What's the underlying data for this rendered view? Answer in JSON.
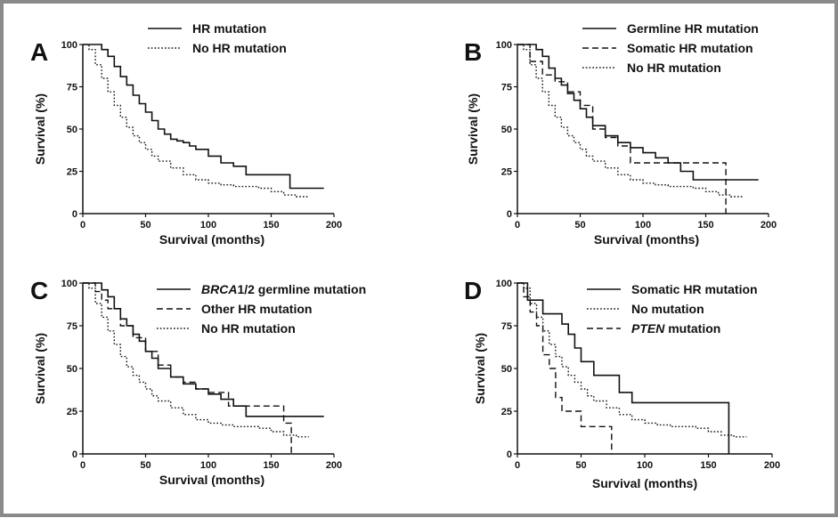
{
  "chart_data": [
    {
      "panel": "A",
      "type": "line",
      "xlabel": "Survival (months)",
      "ylabel": "Survival (%)",
      "xlim": [
        0,
        200
      ],
      "ylim": [
        0,
        100
      ],
      "xticks": [
        "0",
        "50",
        "100",
        "150",
        "200"
      ],
      "yticks": [
        "0",
        "25",
        "50",
        "75",
        "100"
      ],
      "legend_position": "top-right",
      "series": [
        {
          "name": "HR mutation",
          "style": "solid",
          "x": [
            0,
            8,
            15,
            20,
            25,
            30,
            35,
            40,
            45,
            50,
            55,
            60,
            65,
            70,
            75,
            80,
            85,
            90,
            100,
            110,
            120,
            130,
            140,
            150,
            160,
            165,
            170,
            180,
            192
          ],
          "y": [
            100,
            100,
            97,
            93,
            87,
            81,
            76,
            70,
            65,
            60,
            55,
            50,
            47,
            44,
            43,
            42,
            40,
            38,
            34,
            30,
            28,
            23,
            23,
            23,
            23,
            15,
            15,
            15,
            15
          ]
        },
        {
          "name": "No HR mutation",
          "style": "dotted",
          "x": [
            0,
            5,
            10,
            15,
            20,
            25,
            30,
            35,
            40,
            45,
            50,
            55,
            60,
            70,
            80,
            90,
            100,
            110,
            120,
            130,
            140,
            150,
            160,
            170,
            180
          ],
          "y": [
            100,
            97,
            88,
            80,
            72,
            64,
            57,
            51,
            46,
            42,
            38,
            34,
            31,
            27,
            23,
            20,
            18,
            17,
            16,
            16,
            15,
            13,
            11,
            10,
            10
          ]
        }
      ]
    },
    {
      "panel": "B",
      "type": "line",
      "xlabel": "Survival (months)",
      "ylabel": "Survival (%)",
      "xlim": [
        0,
        200
      ],
      "ylim": [
        0,
        100
      ],
      "xticks": [
        "0",
        "50",
        "100",
        "150",
        "200"
      ],
      "yticks": [
        "0",
        "25",
        "50",
        "75",
        "100"
      ],
      "legend_position": "top-right",
      "series": [
        {
          "name": "Germline HR mutation",
          "style": "solid",
          "x": [
            0,
            8,
            15,
            20,
            25,
            30,
            35,
            40,
            45,
            50,
            55,
            60,
            70,
            80,
            90,
            100,
            110,
            120,
            130,
            140,
            150,
            160,
            170,
            192
          ],
          "y": [
            100,
            100,
            97,
            93,
            86,
            80,
            76,
            71,
            67,
            62,
            57,
            52,
            46,
            42,
            39,
            36,
            33,
            30,
            25,
            20,
            20,
            20,
            20,
            20
          ]
        },
        {
          "name": "Somatic HR mutation",
          "style": "dashed",
          "x": [
            0,
            10,
            15,
            20,
            30,
            40,
            50,
            60,
            70,
            80,
            90,
            100,
            120,
            140,
            160,
            165,
            166
          ],
          "y": [
            100,
            90,
            90,
            82,
            78,
            72,
            64,
            50,
            45,
            40,
            30,
            30,
            30,
            30,
            30,
            30,
            0
          ]
        },
        {
          "name": "No HR mutation",
          "style": "dotted",
          "x": [
            0,
            5,
            10,
            15,
            20,
            25,
            30,
            35,
            40,
            45,
            50,
            55,
            60,
            70,
            80,
            90,
            100,
            110,
            120,
            130,
            140,
            150,
            160,
            170,
            180
          ],
          "y": [
            100,
            97,
            88,
            80,
            72,
            64,
            57,
            51,
            46,
            42,
            38,
            34,
            31,
            27,
            23,
            20,
            18,
            17,
            16,
            16,
            15,
            13,
            11,
            10,
            10
          ]
        }
      ]
    },
    {
      "panel": "C",
      "type": "line",
      "xlabel": "Survival (months)",
      "ylabel": "Survival (%)",
      "xlim": [
        0,
        200
      ],
      "ylim": [
        0,
        100
      ],
      "xticks": [
        "0",
        "50",
        "100",
        "150",
        "200"
      ],
      "yticks": [
        "0",
        "25",
        "50",
        "75",
        "100"
      ],
      "legend_position": "top-right",
      "series": [
        {
          "name": "BRCA1/2 germline mutation",
          "style": "solid",
          "x": [
            0,
            8,
            15,
            20,
            25,
            30,
            35,
            40,
            45,
            50,
            55,
            60,
            70,
            80,
            90,
            100,
            110,
            120,
            130,
            140,
            150,
            160,
            170,
            192
          ],
          "y": [
            100,
            100,
            96,
            92,
            85,
            79,
            75,
            70,
            66,
            60,
            56,
            50,
            45,
            41,
            38,
            35,
            32,
            28,
            22,
            22,
            22,
            22,
            22,
            22
          ]
        },
        {
          "name": "Other HR mutation",
          "style": "dashed",
          "x": [
            0,
            10,
            15,
            20,
            30,
            40,
            50,
            60,
            70,
            80,
            90,
            100,
            110,
            115,
            116,
            130,
            140,
            150,
            160,
            165,
            166
          ],
          "y": [
            100,
            95,
            90,
            85,
            75,
            68,
            60,
            52,
            45,
            42,
            38,
            36,
            36,
            36,
            28,
            28,
            28,
            28,
            18,
            18,
            0
          ]
        },
        {
          "name": "No HR mutation",
          "style": "dotted",
          "x": [
            0,
            5,
            10,
            15,
            20,
            25,
            30,
            35,
            40,
            45,
            50,
            55,
            60,
            70,
            80,
            90,
            100,
            110,
            120,
            130,
            140,
            150,
            160,
            170,
            180
          ],
          "y": [
            100,
            97,
            88,
            80,
            72,
            64,
            57,
            51,
            46,
            42,
            38,
            34,
            31,
            27,
            23,
            20,
            18,
            17,
            16,
            16,
            15,
            13,
            11,
            10,
            10
          ]
        }
      ]
    },
    {
      "panel": "D",
      "type": "line",
      "xlabel": "Survival (months)",
      "ylabel": "Survival (%)",
      "xlim": [
        0,
        200
      ],
      "ylim": [
        0,
        100
      ],
      "xticks": [
        "0",
        "50",
        "100",
        "150",
        "200"
      ],
      "yticks": [
        "0",
        "25",
        "50",
        "75",
        "100"
      ],
      "legend_position": "top-right",
      "series": [
        {
          "name": "Somatic HR mutation",
          "style": "solid",
          "x": [
            0,
            8,
            15,
            20,
            30,
            35,
            40,
            45,
            50,
            55,
            60,
            70,
            80,
            90,
            100,
            120,
            140,
            160,
            165,
            166
          ],
          "y": [
            100,
            90,
            90,
            82,
            82,
            76,
            70,
            62,
            54,
            54,
            46,
            46,
            36,
            30,
            30,
            30,
            30,
            30,
            30,
            0
          ]
        },
        {
          "name": "No mutation",
          "style": "dotted",
          "x": [
            0,
            5,
            10,
            15,
            20,
            25,
            30,
            35,
            40,
            45,
            50,
            55,
            60,
            70,
            80,
            90,
            100,
            110,
            120,
            130,
            140,
            150,
            160,
            170,
            180
          ],
          "y": [
            100,
            97,
            88,
            80,
            72,
            64,
            57,
            51,
            46,
            42,
            38,
            34,
            31,
            27,
            23,
            20,
            18,
            17,
            16,
            16,
            15,
            13,
            11,
            10,
            10
          ]
        },
        {
          "name": "PTEN mutation",
          "style": "dashed",
          "x": [
            0,
            5,
            10,
            15,
            20,
            25,
            30,
            35,
            40,
            50,
            55,
            60,
            70,
            73,
            74
          ],
          "y": [
            100,
            92,
            83,
            75,
            58,
            50,
            33,
            25,
            25,
            16,
            16,
            16,
            16,
            16,
            0
          ]
        }
      ]
    }
  ]
}
